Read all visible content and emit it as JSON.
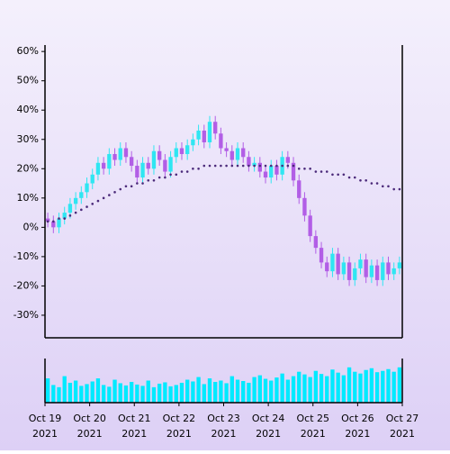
{
  "chart_data": {
    "type": "candlestick",
    "open": [
      3,
      2,
      0,
      3,
      5,
      8,
      10,
      12,
      15,
      18,
      22,
      20,
      25,
      23,
      27,
      24,
      21,
      17,
      22,
      20,
      26,
      23,
      19,
      24,
      27,
      25,
      28,
      30,
      33,
      29,
      36,
      32,
      27,
      26,
      23,
      27,
      24,
      21,
      22,
      19,
      17,
      21,
      18,
      24,
      22,
      16,
      10,
      4,
      -3,
      -7,
      -12,
      -15,
      -9,
      -16,
      -12,
      -18,
      -14,
      -11,
      -17,
      -13,
      -18,
      -12,
      -16,
      -14
    ],
    "high": [
      5,
      4,
      5,
      7,
      10,
      12,
      14,
      17,
      20,
      24,
      24,
      27,
      27,
      29,
      29,
      26,
      23,
      24,
      24,
      28,
      28,
      25,
      26,
      29,
      29,
      30,
      32,
      35,
      35,
      38,
      38,
      34,
      29,
      28,
      29,
      29,
      26,
      24,
      24,
      21,
      23,
      23,
      26,
      26,
      24,
      18,
      12,
      6,
      -1,
      -5,
      -10,
      -7,
      -7,
      -10,
      -10,
      -12,
      -9,
      -9,
      -11,
      -11,
      -10,
      -10,
      -12,
      -10
    ],
    "low": [
      0,
      -2,
      -2,
      1,
      3,
      6,
      8,
      10,
      13,
      16,
      18,
      18,
      21,
      21,
      22,
      19,
      15,
      15,
      18,
      18,
      21,
      17,
      17,
      22,
      23,
      23,
      26,
      28,
      27,
      27,
      30,
      25,
      24,
      21,
      21,
      22,
      19,
      19,
      17,
      15,
      15,
      16,
      16,
      20,
      14,
      8,
      2,
      -5,
      -9,
      -14,
      -17,
      -17,
      -18,
      -18,
      -20,
      -20,
      -16,
      -19,
      -19,
      -20,
      -20,
      -18,
      -18,
      -16
    ],
    "close": [
      2,
      0,
      3,
      5,
      8,
      10,
      12,
      15,
      18,
      22,
      20,
      25,
      23,
      27,
      24,
      21,
      17,
      22,
      20,
      26,
      23,
      19,
      24,
      27,
      25,
      28,
      30,
      33,
      29,
      36,
      32,
      27,
      26,
      23,
      27,
      24,
      21,
      22,
      19,
      17,
      21,
      18,
      24,
      22,
      16,
      10,
      4,
      -3,
      -7,
      -12,
      -15,
      -9,
      -16,
      -12,
      -18,
      -14,
      -11,
      -17,
      -13,
      -18,
      -12,
      -16,
      -14,
      -12
    ],
    "up_color": "#2fe6f2",
    "down_color": "#b25ee6",
    "moving_average": {
      "color": "#4b2a7a",
      "values": [
        2,
        2,
        3,
        3,
        4,
        5,
        6,
        7,
        8,
        9,
        10,
        11,
        12,
        13,
        14,
        14,
        15,
        15,
        16,
        16,
        17,
        17,
        18,
        18,
        19,
        19,
        20,
        20,
        21,
        21,
        21,
        21,
        21,
        21,
        21,
        21,
        21,
        21,
        21,
        21,
        21,
        21,
        21,
        21,
        21,
        20,
        20,
        20,
        19,
        19,
        19,
        18,
        18,
        18,
        17,
        17,
        16,
        16,
        15,
        15,
        14,
        14,
        13,
        13
      ]
    },
    "volume": {
      "color": "#00eaff",
      "ylim": [
        0,
        100
      ],
      "values": [
        55,
        40,
        35,
        60,
        45,
        50,
        38,
        42,
        48,
        55,
        40,
        36,
        52,
        44,
        39,
        47,
        41,
        38,
        50,
        35,
        43,
        46,
        37,
        40,
        45,
        52,
        48,
        58,
        42,
        55,
        47,
        50,
        44,
        60,
        52,
        49,
        45,
        58,
        62,
        54,
        50,
        57,
        66,
        52,
        60,
        70,
        64,
        58,
        72,
        65,
        60,
        75,
        68,
        62,
        80,
        70,
        66,
        74,
        78,
        69,
        72,
        76,
        70,
        80
      ]
    },
    "ylim": [
      -37.7,
      62.2
    ],
    "yticks": [
      {
        "value": -30,
        "label": "-30%"
      },
      {
        "value": -20,
        "label": "-20%"
      },
      {
        "value": -10,
        "label": "-10%"
      },
      {
        "value": 0,
        "label": "0%"
      },
      {
        "value": 10,
        "label": "10%"
      },
      {
        "value": 20,
        "label": "20%"
      },
      {
        "value": 30,
        "label": "30%"
      },
      {
        "value": 40,
        "label": "40%"
      },
      {
        "value": 50,
        "label": "50%"
      },
      {
        "value": 60,
        "label": "60%"
      }
    ],
    "xlim": [
      0,
      8
    ],
    "xticks": [
      {
        "value": 0,
        "label": [
          "Oct 19",
          "2021"
        ]
      },
      {
        "value": 1,
        "label": [
          "Oct 20",
          "2021"
        ]
      },
      {
        "value": 2,
        "label": [
          "Oct 21",
          "2021"
        ]
      },
      {
        "value": 3,
        "label": [
          "Oct 22",
          "2021"
        ]
      },
      {
        "value": 4,
        "label": [
          "Oct 23",
          "2021"
        ]
      },
      {
        "value": 5,
        "label": [
          "Oct 24",
          "2021"
        ]
      },
      {
        "value": 6,
        "label": [
          "Oct 25",
          "2021"
        ]
      },
      {
        "value": 7,
        "label": [
          "Oct 26",
          "2021"
        ]
      },
      {
        "value": 8,
        "label": [
          "Oct 27",
          "2021"
        ]
      }
    ]
  }
}
